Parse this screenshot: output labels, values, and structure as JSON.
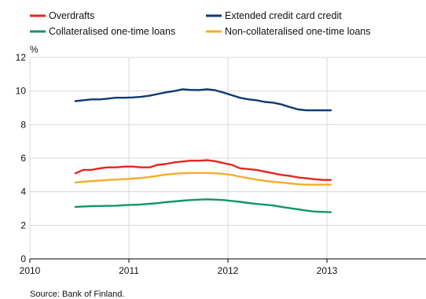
{
  "chart_data": {
    "type": "line",
    "ylabel": "%",
    "ylim": [
      0,
      12
    ],
    "yticks": [
      0,
      2,
      4,
      6,
      8,
      10,
      12
    ],
    "xlim": [
      2010,
      2014
    ],
    "xticks": [
      "2010",
      "2011",
      "2012",
      "2013"
    ],
    "grid": true,
    "legend_position": "top",
    "source": "Source: Bank of Finland.",
    "x": [
      2010.46,
      2010.54,
      2010.62,
      2010.71,
      2010.79,
      2010.87,
      2010.96,
      2011.04,
      2011.12,
      2011.21,
      2011.29,
      2011.37,
      2011.46,
      2011.54,
      2011.62,
      2011.71,
      2011.79,
      2011.87,
      2011.96,
      2012.04,
      2012.12,
      2012.21,
      2012.29,
      2012.37,
      2012.46,
      2012.54,
      2012.62,
      2012.71,
      2012.79,
      2012.87,
      2012.96,
      2013.04
    ],
    "series": [
      {
        "name": "Overdrafts",
        "color": "#e8251f",
        "values": [
          5.1,
          5.3,
          5.3,
          5.4,
          5.45,
          5.45,
          5.5,
          5.5,
          5.45,
          5.45,
          5.6,
          5.65,
          5.75,
          5.8,
          5.85,
          5.85,
          5.88,
          5.82,
          5.7,
          5.6,
          5.4,
          5.35,
          5.3,
          5.2,
          5.1,
          5.0,
          4.95,
          4.85,
          4.8,
          4.75,
          4.7,
          4.7
        ]
      },
      {
        "name": "Extended credit card credit",
        "color": "#0e3a73",
        "values": [
          9.4,
          9.45,
          9.5,
          9.5,
          9.55,
          9.6,
          9.6,
          9.62,
          9.65,
          9.72,
          9.82,
          9.92,
          10.0,
          10.1,
          10.07,
          10.06,
          10.1,
          10.05,
          9.9,
          9.75,
          9.6,
          9.5,
          9.45,
          9.35,
          9.3,
          9.2,
          9.05,
          8.9,
          8.85,
          8.85,
          8.85,
          8.85
        ]
      },
      {
        "name": "Collateralised one-time loans",
        "color": "#11956a",
        "values": [
          3.1,
          3.12,
          3.14,
          3.15,
          3.16,
          3.17,
          3.2,
          3.22,
          3.24,
          3.28,
          3.32,
          3.38,
          3.42,
          3.47,
          3.5,
          3.53,
          3.55,
          3.53,
          3.5,
          3.45,
          3.4,
          3.33,
          3.27,
          3.23,
          3.18,
          3.1,
          3.03,
          2.95,
          2.88,
          2.82,
          2.8,
          2.78
        ]
      },
      {
        "name": "Non-collateralised one-time loans",
        "color": "#f5ad2a",
        "values": [
          4.55,
          4.6,
          4.63,
          4.67,
          4.7,
          4.72,
          4.75,
          4.78,
          4.82,
          4.88,
          4.95,
          5.02,
          5.07,
          5.1,
          5.12,
          5.12,
          5.12,
          5.1,
          5.06,
          5.0,
          4.9,
          4.8,
          4.72,
          4.65,
          4.6,
          4.55,
          4.5,
          4.45,
          4.42,
          4.42,
          4.42,
          4.42
        ]
      }
    ]
  }
}
